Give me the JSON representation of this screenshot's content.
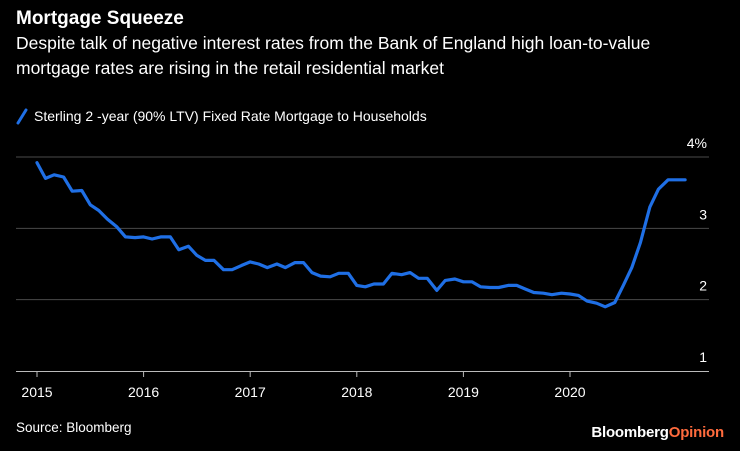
{
  "title": "Mortgage Squeeze",
  "subtitle": "Despite talk of negative interest rates from the Bank of England high loan-to-value mortgage rates are rising in the retail residential market",
  "source": "Source: Bloomberg",
  "brand": {
    "part1": "Bloomberg",
    "part2": "Opinion"
  },
  "colors": {
    "line": "#1f6fe5",
    "grid": "#4a4a4a",
    "brand_accent": "#ff6b3d",
    "background": "#000000"
  },
  "chart_data": {
    "type": "line",
    "title": "Mortgage Squeeze",
    "xlabel": "",
    "ylabel": "",
    "ylim": [
      1,
      4
    ],
    "xlim": [
      2014.9,
      2021.3
    ],
    "y_ticks": [
      1,
      2,
      3,
      4
    ],
    "y_tick_labels": [
      "1",
      "2",
      "3",
      "4%"
    ],
    "x_ticks": [
      2015,
      2016,
      2017,
      2018,
      2019,
      2020
    ],
    "x_tick_labels": [
      "2015",
      "2016",
      "2017",
      "2018",
      "2019",
      "2020"
    ],
    "grid": true,
    "series": [
      {
        "name": "Sterling 2 -year (90% LTV) Fixed Rate Mortgage to Households",
        "x": [
          2015.0,
          2015.08,
          2015.16,
          2015.25,
          2015.33,
          2015.42,
          2015.5,
          2015.58,
          2015.66,
          2015.75,
          2015.83,
          2015.92,
          2016.0,
          2016.08,
          2016.16,
          2016.25,
          2016.33,
          2016.42,
          2016.5,
          2016.58,
          2016.66,
          2016.75,
          2016.83,
          2016.92,
          2017.0,
          2017.08,
          2017.16,
          2017.25,
          2017.33,
          2017.42,
          2017.5,
          2017.58,
          2017.66,
          2017.75,
          2017.83,
          2017.92,
          2018.0,
          2018.08,
          2018.16,
          2018.25,
          2018.33,
          2018.42,
          2018.5,
          2018.58,
          2018.66,
          2018.75,
          2018.83,
          2018.92,
          2019.0,
          2019.08,
          2019.16,
          2019.25,
          2019.33,
          2019.42,
          2019.5,
          2019.58,
          2019.66,
          2019.75,
          2019.83,
          2019.92,
          2020.0,
          2020.08,
          2020.16,
          2020.25,
          2020.33,
          2020.42,
          2020.5,
          2020.58,
          2020.66,
          2020.75,
          2020.83,
          2020.92,
          2021.0,
          2021.08
        ],
        "values": [
          3.92,
          3.7,
          3.75,
          3.72,
          3.52,
          3.53,
          3.33,
          3.25,
          3.13,
          3.02,
          2.88,
          2.87,
          2.88,
          2.85,
          2.88,
          2.88,
          2.7,
          2.75,
          2.62,
          2.55,
          2.55,
          2.42,
          2.42,
          2.48,
          2.53,
          2.5,
          2.45,
          2.5,
          2.45,
          2.52,
          2.52,
          2.38,
          2.33,
          2.32,
          2.37,
          2.37,
          2.2,
          2.18,
          2.22,
          2.22,
          2.37,
          2.35,
          2.38,
          2.3,
          2.3,
          2.13,
          2.27,
          2.29,
          2.25,
          2.25,
          2.18,
          2.17,
          2.17,
          2.2,
          2.2,
          2.15,
          2.1,
          2.09,
          2.07,
          2.09,
          2.08,
          2.06,
          1.98,
          1.95,
          1.9,
          1.96,
          2.2,
          2.45,
          2.8,
          3.3,
          3.55,
          3.68,
          3.68,
          3.68
        ]
      }
    ]
  }
}
